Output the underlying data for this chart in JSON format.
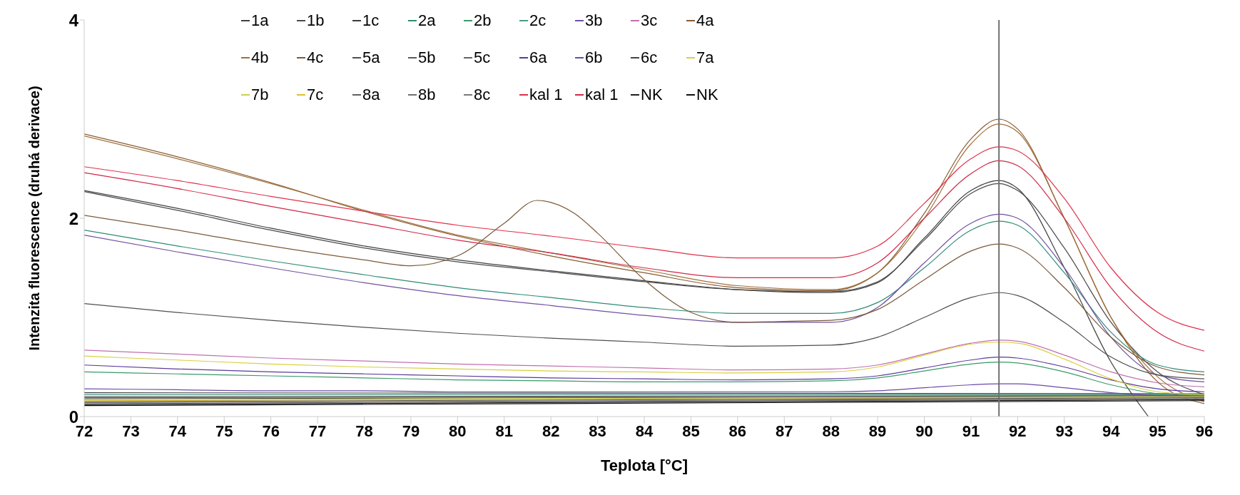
{
  "chart_data": {
    "type": "line",
    "xlabel": "Teplota [°C]",
    "ylabel": "Intenzita fluorescence (druhá derivace)",
    "x": [
      72,
      74,
      76,
      78,
      80,
      82,
      84,
      86,
      88,
      89,
      90,
      91,
      91.6,
      92,
      93,
      94,
      95,
      96
    ],
    "xlim": [
      72,
      96
    ],
    "xticks": [
      72,
      73,
      74,
      75,
      76,
      77,
      78,
      79,
      80,
      81,
      82,
      83,
      84,
      85,
      86,
      87,
      88,
      89,
      90,
      91,
      92,
      93,
      94,
      95,
      96
    ],
    "ylim": [
      0,
      4
    ],
    "yticks": [
      0,
      2,
      4
    ],
    "grid": false,
    "legend": "top",
    "marker": "none",
    "line_style": "solid",
    "ref_lines": [
      {
        "axis": "x",
        "value": 91.6,
        "color": "#707070"
      }
    ],
    "series": [
      {
        "name": "1a",
        "color": "#404040",
        "x": [
          72,
          74,
          76,
          78,
          80,
          82,
          84,
          86,
          88,
          89,
          90,
          91,
          91.6,
          92,
          93,
          94,
          94.8
        ],
        "values": [
          2.28,
          2.1,
          1.9,
          1.72,
          1.58,
          1.47,
          1.37,
          1.28,
          1.25,
          1.35,
          1.8,
          2.28,
          2.38,
          2.3,
          1.5,
          0.55,
          0
        ]
      },
      {
        "name": "1b",
        "color": "#4a4a4a",
        "values": [
          2.27,
          2.08,
          1.88,
          1.7,
          1.56,
          1.46,
          1.36,
          1.28,
          1.26,
          1.36,
          1.78,
          2.25,
          2.35,
          2.28,
          1.7,
          0.95,
          0.45,
          0.22
        ]
      },
      {
        "name": "1c",
        "color": "#3a3a3a",
        "x": [
          72,
          96
        ],
        "values": [
          0.24,
          0.23
        ]
      },
      {
        "name": "2a",
        "color": "#2e8b75",
        "values": [
          1.88,
          1.72,
          1.57,
          1.43,
          1.3,
          1.2,
          1.1,
          1.04,
          1.04,
          1.15,
          1.5,
          1.88,
          1.97,
          1.93,
          1.45,
          0.85,
          0.52,
          0.45
        ]
      },
      {
        "name": "2b",
        "color": "#3a9a6a",
        "values": [
          0.45,
          0.43,
          0.41,
          0.39,
          0.37,
          0.36,
          0.35,
          0.35,
          0.36,
          0.39,
          0.46,
          0.53,
          0.55,
          0.54,
          0.45,
          0.32,
          0.23,
          0.2
        ]
      },
      {
        "name": "2c",
        "color": "#4a9a88",
        "x": [
          72,
          96
        ],
        "values": [
          0.22,
          0.22
        ]
      },
      {
        "name": "3b",
        "color": "#7050a0",
        "values": [
          1.83,
          1.66,
          1.5,
          1.35,
          1.22,
          1.12,
          1.02,
          0.95,
          0.95,
          1.1,
          1.55,
          1.95,
          2.04,
          2.0,
          1.5,
          0.8,
          0.42,
          0.35
        ]
      },
      {
        "name": "3c",
        "color": "#c070b0",
        "values": [
          0.67,
          0.63,
          0.59,
          0.56,
          0.53,
          0.51,
          0.49,
          0.47,
          0.48,
          0.52,
          0.63,
          0.74,
          0.77,
          0.76,
          0.62,
          0.45,
          0.34,
          0.3
        ]
      },
      {
        "name": "4a",
        "color": "#8a5a30",
        "values": [
          2.85,
          2.62,
          2.36,
          2.07,
          1.82,
          1.62,
          1.45,
          1.3,
          1.27,
          1.45,
          2.05,
          2.8,
          3.0,
          2.9,
          2.0,
          1.0,
          0.35,
          0.13
        ]
      },
      {
        "name": "4b",
        "color": "#a0703c",
        "values": [
          2.83,
          2.6,
          2.35,
          2.08,
          1.83,
          1.65,
          1.48,
          1.32,
          1.28,
          1.45,
          2.0,
          2.75,
          2.95,
          2.87,
          2.0,
          1.0,
          0.4,
          0.15
        ]
      },
      {
        "name": "4c",
        "color": "#7a5a3a",
        "x": [
          72,
          74,
          76,
          78,
          79,
          80,
          81,
          81.7,
          82.5,
          83,
          84,
          85,
          86,
          87,
          88,
          89,
          90,
          91,
          91.6,
          92,
          93,
          94,
          95,
          96
        ],
        "values": [
          2.03,
          1.88,
          1.72,
          1.58,
          1.52,
          1.62,
          1.95,
          2.18,
          2.05,
          1.85,
          1.38,
          1.05,
          0.95,
          0.96,
          0.97,
          1.08,
          1.38,
          1.67,
          1.74,
          1.7,
          1.3,
          0.8,
          0.5,
          0.42
        ]
      },
      {
        "name": "5a",
        "color": "#505050",
        "values": [
          1.14,
          1.05,
          0.97,
          0.9,
          0.84,
          0.79,
          0.75,
          0.71,
          0.72,
          0.8,
          1.0,
          1.2,
          1.25,
          1.22,
          0.95,
          0.6,
          0.42,
          0.38
        ]
      },
      {
        "name": "5b",
        "color": "#5a5a5a",
        "x": [
          72,
          96
        ],
        "values": [
          0.2,
          0.21
        ]
      },
      {
        "name": "5c",
        "color": "#646464",
        "x": [
          72,
          96
        ],
        "values": [
          0.19,
          0.21
        ]
      },
      {
        "name": "6a",
        "color": "#5a3a9a",
        "values": [
          0.52,
          0.48,
          0.45,
          0.43,
          0.41,
          0.39,
          0.38,
          0.37,
          0.38,
          0.41,
          0.49,
          0.57,
          0.6,
          0.59,
          0.5,
          0.37,
          0.28,
          0.25
        ]
      },
      {
        "name": "6b",
        "color": "#6a4aa8",
        "values": [
          0.28,
          0.27,
          0.26,
          0.26,
          0.25,
          0.25,
          0.25,
          0.25,
          0.25,
          0.26,
          0.29,
          0.32,
          0.33,
          0.33,
          0.29,
          0.24,
          0.21,
          0.2
        ]
      },
      {
        "name": "6c",
        "color": "#444444",
        "x": [
          72,
          96
        ],
        "values": [
          0.18,
          0.2
        ]
      },
      {
        "name": "7a",
        "color": "#d8d040",
        "values": [
          0.61,
          0.57,
          0.53,
          0.5,
          0.48,
          0.46,
          0.45,
          0.44,
          0.45,
          0.5,
          0.62,
          0.73,
          0.75,
          0.74,
          0.58,
          0.38,
          0.25,
          0.22
        ]
      },
      {
        "name": "7b",
        "color": "#c8d050",
        "x": [
          72,
          96
        ],
        "values": [
          0.17,
          0.2
        ]
      },
      {
        "name": "7c",
        "color": "#e0c030",
        "x": [
          72,
          96
        ],
        "values": [
          0.16,
          0.19
        ]
      },
      {
        "name": "8a",
        "color": "#606060",
        "x": [
          72,
          96
        ],
        "values": [
          0.15,
          0.19
        ]
      },
      {
        "name": "8b",
        "color": "#707070",
        "x": [
          72,
          96
        ],
        "values": [
          0.14,
          0.18
        ]
      },
      {
        "name": "8c",
        "color": "#7a7a7a",
        "x": [
          72,
          96
        ],
        "values": [
          0.13,
          0.18
        ]
      },
      {
        "name": "kal 1",
        "color": "#e0304a",
        "values": [
          2.52,
          2.38,
          2.22,
          2.07,
          1.93,
          1.82,
          1.7,
          1.6,
          1.6,
          1.72,
          2.15,
          2.6,
          2.72,
          2.68,
          2.2,
          1.5,
          1.05,
          0.87
        ]
      },
      {
        "name": "kal 1",
        "color": "#d02848",
        "values": [
          2.46,
          2.3,
          2.12,
          1.95,
          1.78,
          1.65,
          1.5,
          1.4,
          1.4,
          1.55,
          2.0,
          2.45,
          2.58,
          2.53,
          2.0,
          1.3,
          0.85,
          0.66
        ]
      },
      {
        "name": "NK",
        "color": "#202020",
        "x": [
          72,
          96
        ],
        "values": [
          0.12,
          0.17
        ]
      },
      {
        "name": "NK",
        "color": "#101010",
        "x": [
          72,
          96
        ],
        "values": [
          0.11,
          0.16
        ]
      }
    ]
  }
}
